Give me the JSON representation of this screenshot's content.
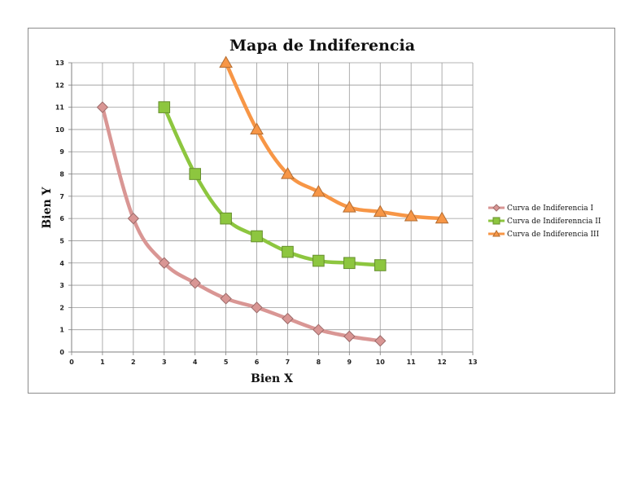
{
  "chart_data": {
    "type": "line",
    "title": "Mapa de Indiferencia",
    "xlabel": "Bien X",
    "ylabel": "Bien Y",
    "xlim": [
      0,
      13
    ],
    "ylim": [
      0,
      13
    ],
    "xticks": [
      0,
      1,
      2,
      3,
      4,
      5,
      6,
      7,
      8,
      9,
      10,
      11,
      12,
      13
    ],
    "yticks": [
      0,
      1,
      2,
      3,
      4,
      5,
      6,
      7,
      8,
      9,
      10,
      11,
      12,
      13
    ],
    "grid": true,
    "legend_position": "right",
    "series": [
      {
        "name": "Curva de Indiferencia I",
        "color": "#d99694",
        "marker": "diamond",
        "x": [
          1,
          2,
          3,
          4,
          5,
          6,
          7,
          8,
          9,
          10
        ],
        "y": [
          11,
          6,
          4,
          3.1,
          2.4,
          2,
          1.5,
          1,
          0.7,
          0.5
        ]
      },
      {
        "name": "Curva de Indiferenncia II",
        "color": "#8dc63f",
        "marker": "square",
        "x": [
          3,
          4,
          5,
          6,
          7,
          8,
          9,
          10
        ],
        "y": [
          11,
          8,
          6,
          5.2,
          4.5,
          4.1,
          4,
          3.9
        ]
      },
      {
        "name": "Curva de Indiferencia III",
        "color": "#f79646",
        "marker": "triangle",
        "x": [
          5,
          6,
          7,
          8,
          9,
          10,
          11,
          12
        ],
        "y": [
          13,
          10,
          8,
          7.2,
          6.5,
          6.3,
          6.1,
          6
        ]
      }
    ]
  }
}
